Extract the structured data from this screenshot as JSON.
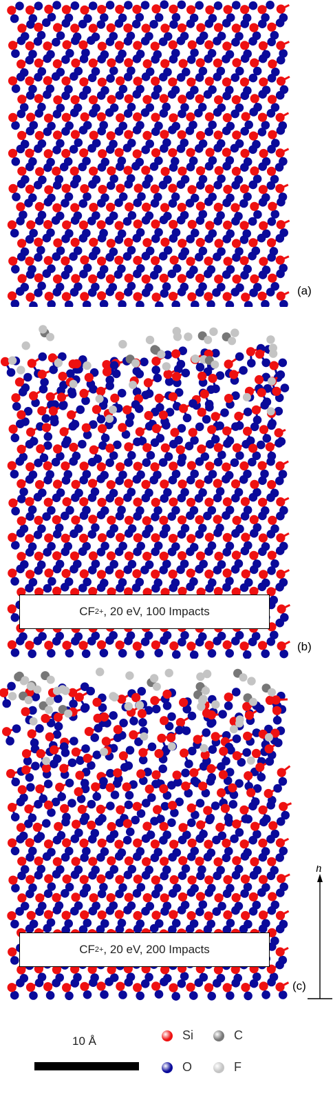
{
  "panels": [
    {
      "label": "(a)",
      "caption": null
    },
    {
      "label": "(b)",
      "caption": {
        "ion_base": "CF",
        "ion_sub": "2",
        "ion_sup": "+",
        "rest": ", 20 eV, 100 Impacts"
      }
    },
    {
      "label": "(c)",
      "caption": {
        "ion_base": "CF",
        "ion_sub": "2",
        "ion_sup": "+",
        "rest": ", 20 eV, 200 Impacts"
      }
    }
  ],
  "axis_symbol": "h",
  "scale_bar": {
    "label": "10 Å"
  },
  "legend": [
    {
      "symbol": "Si",
      "color": "#ee1111"
    },
    {
      "symbol": "C",
      "color": "#777777"
    },
    {
      "symbol": "O",
      "color": "#0a0a9a"
    },
    {
      "symbol": "F",
      "color": "#c4c4c4"
    }
  ]
}
